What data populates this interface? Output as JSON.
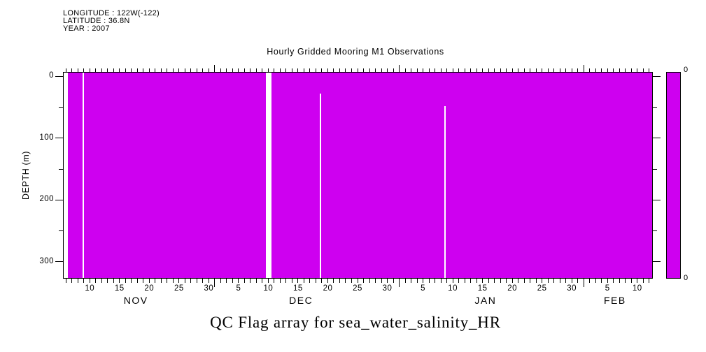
{
  "header": {
    "lines": [
      "LONGITUDE : 122W(-122)",
      "LATITUDE : 36.8N",
      "YEAR : 2007"
    ]
  },
  "colors": {
    "fill": "#CE00F0",
    "axis": "#000000",
    "background": "#FFFFFF",
    "missing": "#FFFFFF"
  },
  "chart_data": {
    "type": "heatmap",
    "title": "Hourly Gridded Mooring M1 Observations",
    "caption": "QC Flag array for sea_water_salinity_HR",
    "longitude": "122W(-122)",
    "latitude": "36.8N",
    "year": "2007",
    "values_constant": 0,
    "fill_color": "#CE00F0",
    "x_axis": {
      "span_days": 99,
      "start_day_in_first_month": 5.5,
      "tick_label_interval": 5,
      "months": [
        {
          "label": "NOV",
          "days_in_month": 30,
          "tick_from": 6,
          "tick_to": 30,
          "labeled_days": [
            10,
            15,
            20,
            25,
            30
          ]
        },
        {
          "label": "DEC",
          "days_in_month": 31,
          "tick_from": 1,
          "tick_to": 31,
          "labeled_days": [
            5,
            10,
            15,
            20,
            25,
            30
          ]
        },
        {
          "label": "JAN",
          "days_in_month": 31,
          "tick_from": 1,
          "tick_to": 31,
          "labeled_days": [
            5,
            10,
            15,
            20,
            25,
            30
          ]
        },
        {
          "label": "FEB",
          "days_in_month": 28,
          "tick_from": 1,
          "tick_to": 12,
          "labeled_days": [
            5,
            10
          ]
        }
      ]
    },
    "y_axis": {
      "label": "DEPTH (m)",
      "min_depth": -7,
      "max_depth": 326,
      "major_ticks": [
        0,
        100,
        200,
        300
      ],
      "minor_ticks": [
        50,
        150,
        250
      ]
    },
    "colorbar": {
      "top_label": "0",
      "bottom_label": "0"
    },
    "gaps": [
      {
        "approx_date": "NOV 6 (record start)",
        "start_day": 0,
        "width_days": 0.88,
        "top_depth_m": -7
      },
      {
        "approx_date": "NOV 9",
        "start_day": 3.25,
        "width_days": 0.25,
        "top_depth_m": -7
      },
      {
        "approx_date": "DEC 10",
        "start_day": 34.1,
        "width_days": 0.95,
        "top_depth_m": -7
      },
      {
        "approx_date": "DEC 19",
        "start_day": 43.2,
        "width_days": 0.2,
        "top_depth_m": 28
      },
      {
        "approx_date": "JAN 9",
        "start_day": 64.1,
        "width_days": 0.2,
        "top_depth_m": 48
      }
    ]
  }
}
